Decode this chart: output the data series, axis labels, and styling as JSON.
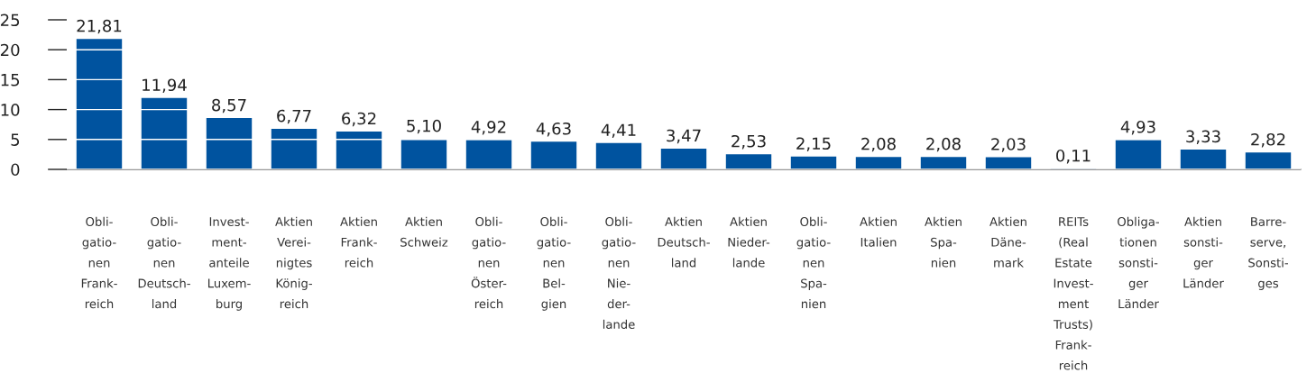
{
  "chart_data": {
    "type": "bar",
    "categories": [
      "Obli-\ngatio-\nnen\nFrank-\nreich",
      "Obli-\ngatio-\nnen\nDeutsch-\nland",
      "Invest-\nment-\nanteile\nLuxem-\nburg",
      "Aktien\nVerei-\nnigtes\nKönig-\nreich",
      "Aktien\nFrank-\nreich",
      "Aktien\nSchweiz",
      "Obli-\ngatio-\nnen\nÖster-\nreich",
      "Obli-\ngatio-\nnen\nBel-\ngien",
      "Obli-\ngatio-\nnen\nNie-\nder-\nlande",
      "Aktien\nDeutsch-\nland",
      "Aktien\nNieder-\nlande",
      "Obli-\ngatio-\nnen\nSpa-\nnien",
      "Aktien\nItalien",
      "Aktien\nSpa-\nnien",
      "Aktien\nDäne-\nmark",
      "REITs\n(Real\nEstate\nInvest-\nment\nTrusts)\nFrank-\nreich",
      "Obliga-\ntionen\nsonsti-\nger\nLänder",
      "Aktien\nsonsti-\nger\nLänder",
      "Barre-\nserve,\nSonsti-\nges"
    ],
    "values": [
      21.81,
      11.94,
      8.57,
      6.77,
      6.32,
      5.1,
      4.92,
      4.63,
      4.41,
      3.47,
      2.53,
      2.15,
      2.08,
      2.08,
      2.03,
      0.11,
      4.93,
      3.33,
      2.82
    ],
    "value_labels": [
      "21,81",
      "11,94",
      "8,57",
      "6,77",
      "6,32",
      "5,10",
      "4,92",
      "4,63",
      "4,41",
      "3,47",
      "2,53",
      "2,15",
      "2,08",
      "2,08",
      "2,03",
      "0,11",
      "4,93",
      "3,33",
      "2,82"
    ],
    "color": "#00539f",
    "ylim": [
      0,
      25
    ],
    "yticks": [
      0,
      5,
      10,
      15,
      20,
      25
    ],
    "grid": "y"
  }
}
